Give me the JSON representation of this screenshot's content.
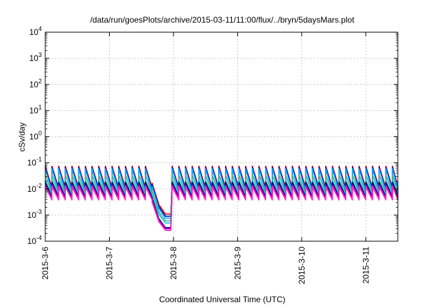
{
  "chart_data": {
    "type": "line",
    "title": "/data/run/goesPlots/archive/2015-03-11/11:00/flux/../bryn/5daysMars.plot",
    "xlabel": "Coordinated Universal Time (UTC)",
    "ylabel": "cSv/day",
    "y_scale": "log",
    "ylim": [
      0.0001,
      10000
    ],
    "xlim": [
      "2015-03-06",
      "2015-03-11T12:00"
    ],
    "grid": true,
    "x_ticks": [
      "2015-3-6",
      "2015-3-7",
      "2015-3-8",
      "2015-3-9",
      "2015-3-10",
      "2015-3-11"
    ],
    "y_ticks": [
      {
        "base": "10",
        "exp": "-4"
      },
      {
        "base": "10",
        "exp": "-3"
      },
      {
        "base": "10",
        "exp": "-2"
      },
      {
        "base": "10",
        "exp": "-1"
      },
      {
        "base": "10",
        "exp": "0"
      },
      {
        "base": "10",
        "exp": "1"
      },
      {
        "base": "10",
        "exp": "2"
      },
      {
        "base": "10",
        "exp": "3"
      },
      {
        "base": "10",
        "exp": "4"
      }
    ],
    "dip": {
      "start": "2015-03-07T14:00",
      "end": "2015-03-07T23:00",
      "note": "flux drops to ~0.0003-0.001 during this interval"
    },
    "sawtooth_period_hours": 2.5,
    "series": [
      {
        "color": "#ff0000",
        "peak": 0.075,
        "trough": 0.011,
        "dip_low": 0.0011
      },
      {
        "color": "#0000aa",
        "peak": 0.068,
        "trough": 0.0095,
        "dip_low": 0.0009
      },
      {
        "color": "#00aaff",
        "peak": 0.06,
        "trough": 0.008,
        "dip_low": 0.00075
      },
      {
        "color": "#55aa99",
        "peak": 0.035,
        "trough": 0.0065,
        "dip_low": 0.0006
      },
      {
        "color": "#00cccc",
        "peak": 0.022,
        "trough": 0.0055,
        "dip_low": 0.0005
      },
      {
        "color": "#000066",
        "peak": 0.018,
        "trough": 0.0048,
        "dip_low": 0.00033
      },
      {
        "color": "#cc00cc",
        "peak": 0.014,
        "trough": 0.0042,
        "dip_low": 0.0003
      },
      {
        "color": "#ff22cc",
        "peak": 0.012,
        "trough": 0.0038,
        "dip_low": 0.00026
      }
    ]
  }
}
